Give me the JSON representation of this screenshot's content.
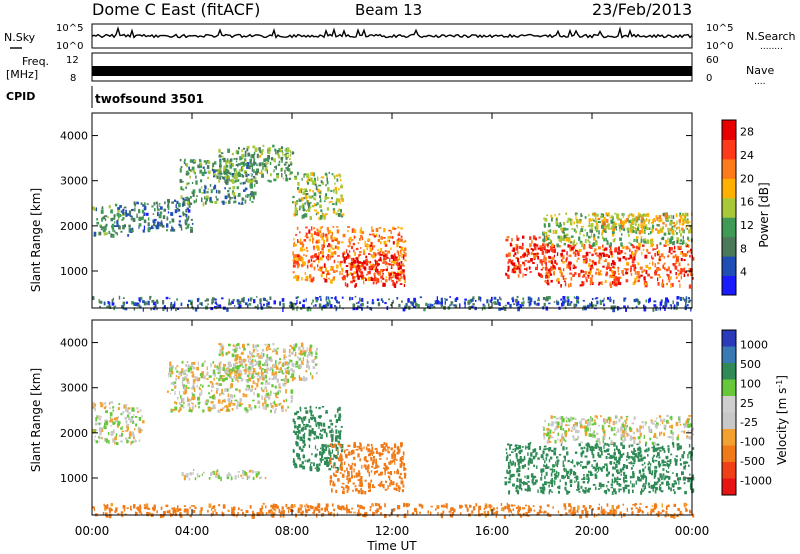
{
  "header": {
    "station": "Dome C East (fitACF)",
    "beam": "Beam 13",
    "date": "23/Feb/2013"
  },
  "top_panels": {
    "nsky": {
      "label": "N.Sky",
      "left_ticks": [
        "10^5",
        "10^0"
      ],
      "right_ticks": [
        "10^5",
        "10^0"
      ],
      "right_label": "N.Search",
      "right_marker": "........"
    },
    "freq": {
      "label_line1": "Freq.",
      "label_line2": "[MHz]",
      "left_ticks": [
        "12",
        "8"
      ],
      "right_ticks": [
        "60",
        "0"
      ],
      "right_label": "Nave",
      "right_marker": "...."
    },
    "cpid": {
      "label": "CPID",
      "program": "twofsound 3501"
    }
  },
  "x_axis": {
    "label": "Time UT",
    "ticks": [
      "00:00",
      "04:00",
      "08:00",
      "12:00",
      "16:00",
      "20:00",
      "00:00"
    ]
  },
  "colors": {
    "power": [
      "#1a1aff",
      "#1f4eb4",
      "#4a7a5a",
      "#3f9a55",
      "#a8c83a",
      "#ffb000",
      "#ff7a18",
      "#ff3a1a",
      "#e80000"
    ],
    "velocity": [
      "#e81414",
      "#f04018",
      "#f07a18",
      "#f2a030",
      "#c8c8c8",
      "#cfcfcf",
      "#66c83a",
      "#2f8a55",
      "#3a7ab4",
      "#2a3ab8"
    ]
  },
  "chart_data": [
    {
      "type": "heatmap",
      "title": "",
      "xlabel": "Time UT",
      "ylabel": "Slant Range [km]",
      "xlim": [
        0,
        24
      ],
      "ylim": [
        180,
        4500
      ],
      "x_ticks": [
        "00:00",
        "04:00",
        "08:00",
        "12:00",
        "16:00",
        "20:00",
        "00:00"
      ],
      "y_ticks": [
        1000,
        2000,
        3000,
        4000
      ],
      "colorbar": {
        "label": "Power [dB]",
        "ticks": [
          4,
          8,
          12,
          16,
          20,
          24,
          28
        ],
        "range": [
          0,
          30
        ]
      },
      "regions": [
        {
          "t": [
            0.0,
            1.5
          ],
          "r": [
            1800,
            2500
          ],
          "value": 10
        },
        {
          "t": [
            1.5,
            4.0
          ],
          "r": [
            1900,
            2600
          ],
          "value": 8
        },
        {
          "t": [
            3.5,
            6.5
          ],
          "r": [
            2500,
            3500
          ],
          "value": 10
        },
        {
          "t": [
            5.0,
            8.0
          ],
          "r": [
            3000,
            3800
          ],
          "value": 12
        },
        {
          "t": [
            8.0,
            10.0
          ],
          "r": [
            2200,
            3200
          ],
          "value": 14
        },
        {
          "t": [
            8.0,
            12.5
          ],
          "r": [
            800,
            2000
          ],
          "value": 22
        },
        {
          "t": [
            10.0,
            12.5
          ],
          "r": [
            700,
            1400
          ],
          "value": 28
        },
        {
          "t": [
            16.5,
            18.5
          ],
          "r": [
            900,
            1800
          ],
          "value": 26
        },
        {
          "t": [
            18.0,
            24.0
          ],
          "r": [
            700,
            1600
          ],
          "value": 24
        },
        {
          "t": [
            18.0,
            24.0
          ],
          "r": [
            1600,
            2300
          ],
          "value": 14
        },
        {
          "t": [
            20.0,
            24.0
          ],
          "r": [
            1900,
            2300
          ],
          "value": 18
        },
        {
          "t": [
            0.0,
            24.0
          ],
          "r": [
            180,
            450
          ],
          "value": 6
        }
      ]
    },
    {
      "type": "heatmap",
      "title": "",
      "xlabel": "Time UT",
      "ylabel": "Slant Range [km]",
      "xlim": [
        0,
        24
      ],
      "ylim": [
        180,
        4500
      ],
      "x_ticks": [
        "00:00",
        "04:00",
        "08:00",
        "12:00",
        "16:00",
        "20:00",
        "00:00"
      ],
      "y_ticks": [
        1000,
        2000,
        3000,
        4000
      ],
      "colorbar": {
        "label": "Velocity [m s-1]",
        "ticks": [
          "1000",
          "500",
          "100",
          "25",
          "-25",
          "-100",
          "-500",
          "-1000"
        ]
      },
      "regions": [
        {
          "t": [
            0.0,
            2.0
          ],
          "r": [
            1800,
            2700
          ],
          "value": 0
        },
        {
          "t": [
            3.0,
            8.0
          ],
          "r": [
            2500,
            3600
          ],
          "value": 0
        },
        {
          "t": [
            5.0,
            9.0
          ],
          "r": [
            3200,
            4000
          ],
          "value": 0
        },
        {
          "t": [
            8.0,
            10.0
          ],
          "r": [
            1200,
            2600
          ],
          "value": 200
        },
        {
          "t": [
            9.5,
            12.5
          ],
          "r": [
            700,
            1800
          ],
          "value": -300
        },
        {
          "t": [
            3.5,
            7.0
          ],
          "r": [
            1000,
            1200
          ],
          "value": 10
        },
        {
          "t": [
            16.5,
            24.0
          ],
          "r": [
            700,
            1800
          ],
          "value": 300
        },
        {
          "t": [
            18.0,
            24.0
          ],
          "r": [
            1800,
            2400
          ],
          "value": 0
        },
        {
          "t": [
            0.0,
            24.0
          ],
          "r": [
            180,
            450
          ],
          "value": -150
        }
      ]
    }
  ]
}
